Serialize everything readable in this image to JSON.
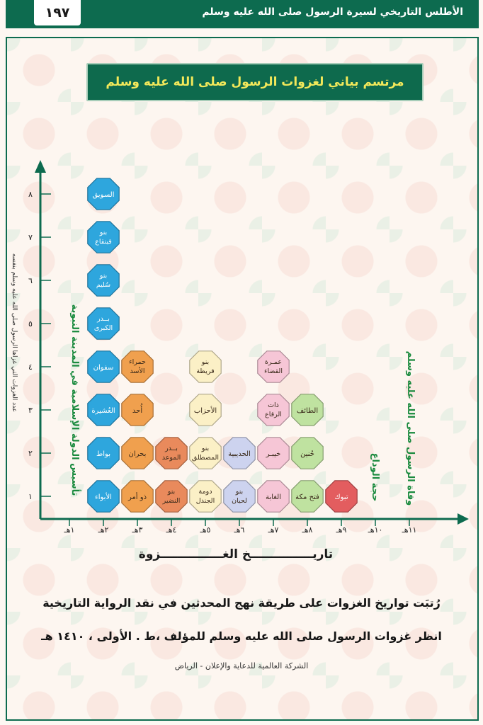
{
  "header": {
    "page_number": "١٩٧",
    "title": "الأطلس التاريخي لسيرة الرسول صلى الله عليه وسلم"
  },
  "chart_data": {
    "type": "table",
    "title": "مرتسم بياني لغزوات الرسول صلى الله عليه وسلم",
    "xlabel": "تاريـــــــــــــــخ الغـــــــــــــــزوة",
    "ylabel": "عدد الغزوات التي غزاها الرسول صلى الله عليه وسلم بنفسه",
    "x_ticks": [
      "١هـ",
      "٢هـ",
      "٣هـ",
      "٤هـ",
      "٥هـ",
      "٦هـ",
      "٧هـ",
      "٨هـ",
      "٩هـ",
      "١٠هـ",
      "١١هـ"
    ],
    "y_ticks": [
      "١",
      "٢",
      "٣",
      "٤",
      "٥",
      "٦",
      "٧",
      "٨"
    ],
    "ylim": [
      1,
      8
    ],
    "counts": [
      {
        "year": "٢هـ",
        "count": 8
      },
      {
        "year": "٣هـ",
        "count": 4
      },
      {
        "year": "٤هـ",
        "count": 2
      },
      {
        "year": "٥هـ",
        "count": 4
      },
      {
        "year": "٦هـ",
        "count": 2
      },
      {
        "year": "٧هـ",
        "count": 4
      },
      {
        "year": "٨هـ",
        "count": 3
      },
      {
        "year": "٩هـ",
        "count": 1
      }
    ],
    "columns": [
      {
        "year": "٢هـ",
        "color": "#2ea6dd",
        "items": [
          "الأبواء",
          "بواط",
          "العُشيرة",
          "سفوان",
          "بــدر الكبرى",
          "بنو سُليم",
          "بنو قينقاع",
          "السويق"
        ]
      },
      {
        "year": "٣هـ",
        "color": "#f0a04e",
        "items": [
          "ذو أمر",
          "بحران",
          "أُحد",
          "حمراء الأسد"
        ]
      },
      {
        "year": "٤هـ",
        "color": "#e98a5c",
        "items": [
          "بنو النضير",
          "بــدر الموعد"
        ]
      },
      {
        "year": "٥هـ",
        "color": "#fbf0c6",
        "items": [
          "دومة الجندل",
          "بنو المصطلق",
          "الأحزاب",
          "بنو قريظة"
        ]
      },
      {
        "year": "٦هـ",
        "color": "#cdd3ef",
        "items": [
          "بنو لحيان",
          "الحديبية"
        ]
      },
      {
        "year": "٧هـ",
        "color": "#f6c6d6",
        "items": [
          "الغابة",
          "خيبـر",
          "ذات الرقاع",
          "عمـرة القضاء"
        ]
      },
      {
        "year": "٨هـ",
        "color": "#bfe2a0",
        "items": [
          "فتح مكة",
          "حُنين",
          "الطائف"
        ]
      },
      {
        "year": "٩هـ",
        "color": "#e35d5f",
        "items": [
          "تبوك"
        ]
      }
    ],
    "annotations": [
      {
        "text": "تأسيس الدولة الإسلامية في المدينة النبوية",
        "at": "١هـ"
      },
      {
        "text": "حجة الوداع",
        "at": "١٠هـ"
      },
      {
        "text": "وفاة الرسول صلى الله عليه وسلم",
        "at": "١١هـ"
      }
    ]
  },
  "footer": {
    "line1": "رُتبَت تواريخ الغزوات على طريقة نهج المحدثين في نقد الرواية التاريخية",
    "line2": "انظر غزوات الرسول صلى الله عليه وسلم للمؤلف ،ط . الأولى ، ١٤١٠ هـ",
    "line3": "الشركة العالمية للدعاية والإعلان - الرياض"
  },
  "colors": {
    "brand": "#0d6b4f",
    "title_text": "#f2e85a",
    "annotation": "#1a8a3e"
  }
}
